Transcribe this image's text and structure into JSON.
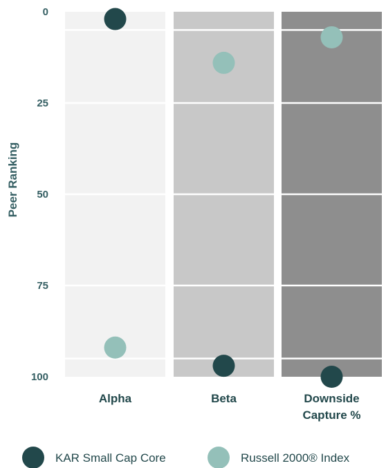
{
  "chart_data": {
    "type": "scatter",
    "ylabel": "Peer Ranking",
    "ylim": [
      0,
      100
    ],
    "y_inverted": true,
    "yticks": [
      0,
      25,
      50,
      75,
      100
    ],
    "categories": [
      "Alpha",
      "Beta",
      "Downside Capture %"
    ],
    "category_labels": [
      [
        "Alpha"
      ],
      [
        "Beta"
      ],
      [
        "Downside",
        "Capture %"
      ]
    ],
    "panel_colors": [
      "#f2f2f2",
      "#c8c8c8",
      "#8e8e8e"
    ],
    "grid": true,
    "legend_position": "bottom",
    "series": [
      {
        "name": "KAR Small Cap Core",
        "color": "#22484b",
        "values": [
          2,
          97,
          100
        ]
      },
      {
        "name": "Russell 2000® Index",
        "color": "#94c0b9",
        "values": [
          92,
          14,
          7
        ]
      }
    ]
  }
}
